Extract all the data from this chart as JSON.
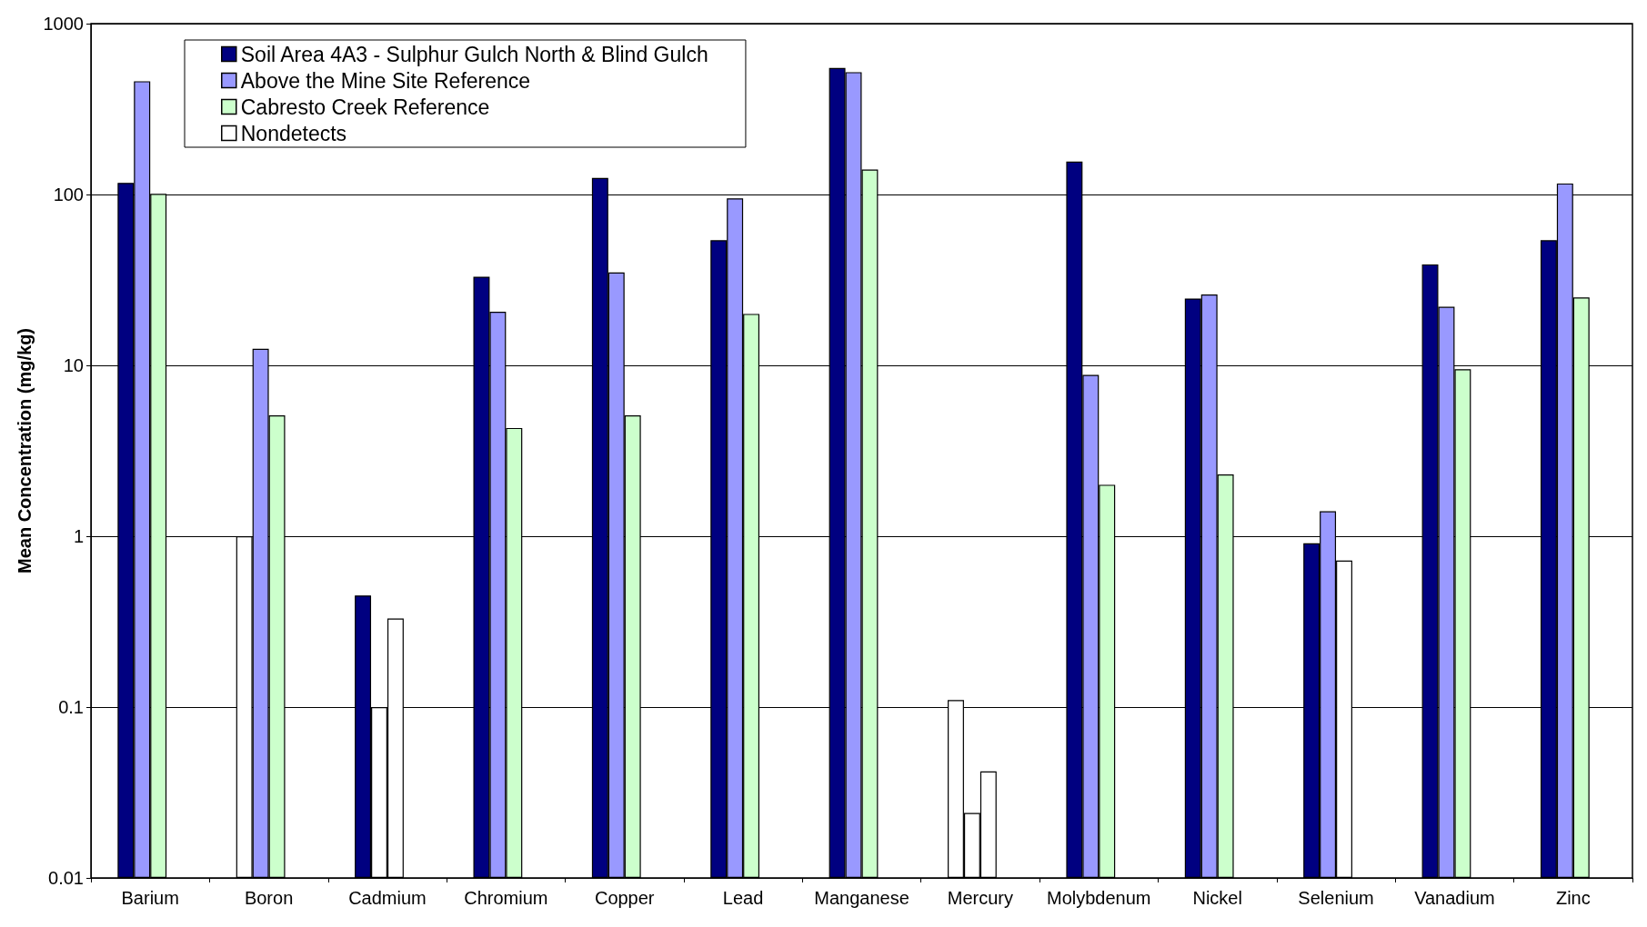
{
  "chart_data": {
    "type": "bar",
    "ylabel": "Mean Concentration (mg/kg)",
    "log": "y",
    "grid": "y",
    "legend": "top left",
    "categories": [
      "Barium",
      "Boron",
      "Cadmium",
      "Chromium",
      "Copper",
      "Lead",
      "Manganese",
      "Mercury",
      "Molybdenum",
      "Nickel",
      "Selenium",
      "Vanadium",
      "Zinc"
    ],
    "ylim": [
      0.01,
      1000
    ],
    "yticks": [
      0.01,
      0.1,
      1,
      10,
      100,
      1000
    ],
    "series": [
      {
        "name": "Soil Area 4A3 - Sulphur Gulch North & Blind Gulch",
        "color": "#000080",
        "values": [
          117,
          1,
          0.45,
          33,
          125,
          54,
          550,
          0.11,
          156,
          24.6,
          0.91,
          39,
          54
        ],
        "colors": [
          "#000080",
          "#ffffff",
          "#000080",
          "#000080",
          "#000080",
          "#000080",
          "#000080",
          "#ffffff",
          "#000080",
          "#000080",
          "#000080",
          "#000080",
          "#000080"
        ]
      },
      {
        "name": "Above the Mine Site Reference",
        "color": "#9999ff",
        "values": [
          460,
          12.5,
          0.1,
          20.6,
          35,
          95,
          520,
          0.024,
          8.8,
          26,
          1.4,
          22,
          116
        ],
        "colors": [
          "#9999ff",
          "#9999ff",
          "#ffffff",
          "#9999ff",
          "#9999ff",
          "#9999ff",
          "#9999ff",
          "#ffffff",
          "#9999ff",
          "#9999ff",
          "#9999ff",
          "#9999ff",
          "#9999ff"
        ]
      },
      {
        "name": "Cabresto Creek Reference",
        "color": "#ccffcc",
        "values": [
          101,
          5.1,
          0.33,
          4.3,
          5.1,
          20,
          140,
          0.042,
          2.0,
          2.3,
          0.72,
          9.5,
          25
        ],
        "colors": [
          "#ccffcc",
          "#ccffcc",
          "#ffffff",
          "#ccffcc",
          "#ccffcc",
          "#ccffcc",
          "#ccffcc",
          "#ffffff",
          "#ccffcc",
          "#ccffcc",
          "#ffffff",
          "#ccffcc",
          "#ccffcc"
        ]
      },
      {
        "name": "Nondetects",
        "color": "#ffffff",
        "values": [
          null,
          null,
          null,
          null,
          null,
          null,
          null,
          null,
          null,
          null,
          null,
          null,
          null
        ]
      }
    ]
  }
}
